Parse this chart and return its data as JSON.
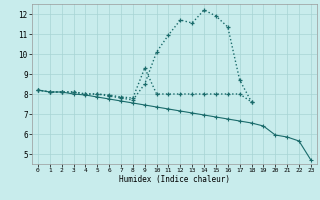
{
  "title": "",
  "xlabel": "Humidex (Indice chaleur)",
  "xlim": [
    -0.5,
    23.5
  ],
  "ylim": [
    4.5,
    12.5
  ],
  "yticks": [
    5,
    6,
    7,
    8,
    9,
    10,
    11,
    12
  ],
  "xticks": [
    0,
    1,
    2,
    3,
    4,
    5,
    6,
    7,
    8,
    9,
    10,
    11,
    12,
    13,
    14,
    15,
    16,
    17,
    18,
    19,
    20,
    21,
    22,
    23
  ],
  "bg_color": "#c8ecec",
  "line_color": "#1a6b6b",
  "grid_color": "#a8d4d4",
  "line1_x": [
    0,
    1,
    2,
    3,
    4,
    5,
    6,
    7,
    8,
    9,
    10,
    11,
    12,
    13,
    14,
    15,
    16,
    17,
    18
  ],
  "line1_y": [
    8.2,
    8.1,
    8.1,
    8.1,
    8.0,
    8.0,
    7.9,
    7.8,
    7.7,
    8.5,
    10.1,
    10.95,
    11.7,
    11.55,
    12.2,
    11.9,
    11.35,
    8.7,
    7.6
  ],
  "line2_x": [
    0,
    1,
    2,
    3,
    4,
    5,
    6,
    7,
    8,
    9,
    10,
    11,
    12,
    13,
    14,
    15,
    16,
    17,
    18
  ],
  "line2_y": [
    8.2,
    8.1,
    8.1,
    8.1,
    8.0,
    8.0,
    7.95,
    7.85,
    7.8,
    9.3,
    8.0,
    8.0,
    8.0,
    8.0,
    8.0,
    8.0,
    8.0,
    8.0,
    7.6
  ],
  "line3_x": [
    0,
    1,
    2,
    3,
    4,
    5,
    6,
    7,
    8,
    9,
    10,
    11,
    12,
    13,
    14,
    15,
    16,
    17,
    18,
    19,
    20,
    21,
    22,
    23
  ],
  "line3_y": [
    8.2,
    8.1,
    8.1,
    8.0,
    7.95,
    7.85,
    7.75,
    7.65,
    7.55,
    7.45,
    7.35,
    7.25,
    7.15,
    7.05,
    6.95,
    6.85,
    6.75,
    6.65,
    6.55,
    6.4,
    5.95,
    5.85,
    5.65,
    4.7
  ]
}
